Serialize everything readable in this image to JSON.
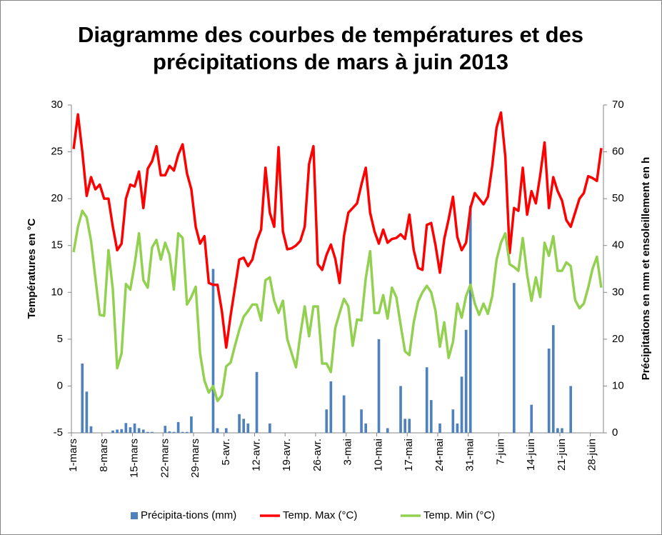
{
  "chart_data": {
    "type": "combo",
    "title": "Diagramme des courbes de températures et des précipitations de mars à juin 2013",
    "y_label": "Températures en °C",
    "y2_label": "Précipitations en mm et ensoleillement en h",
    "categories": [
      "1-mars",
      null,
      null,
      null,
      null,
      null,
      null,
      "8-mars",
      null,
      null,
      null,
      null,
      null,
      null,
      "15-mars",
      null,
      null,
      null,
      null,
      null,
      null,
      "22-mars",
      null,
      null,
      null,
      null,
      null,
      null,
      "29-mars",
      null,
      null,
      null,
      null,
      null,
      null,
      "5-avr.",
      null,
      null,
      null,
      null,
      null,
      null,
      "12-avr.",
      null,
      null,
      null,
      null,
      null,
      null,
      "19-avr.",
      null,
      null,
      null,
      null,
      null,
      null,
      "26-avr.",
      null,
      null,
      null,
      null,
      null,
      null,
      "3-mai",
      null,
      null,
      null,
      null,
      null,
      null,
      "10-mai",
      null,
      null,
      null,
      null,
      null,
      null,
      "17-mai",
      null,
      null,
      null,
      null,
      null,
      null,
      "24-mai",
      null,
      null,
      null,
      null,
      null,
      null,
      "31-mai",
      null,
      null,
      null,
      null,
      null,
      null,
      "7-juin",
      null,
      null,
      null,
      null,
      null,
      null,
      "14-juin",
      null,
      null,
      null,
      null,
      null,
      null,
      "21-juin",
      null,
      null,
      null,
      null,
      null,
      null,
      "28-juin",
      null,
      null
    ],
    "series": [
      {
        "name": "Précipita-tions (mm)",
        "type": "bar",
        "axis": "y2",
        "color": "#4f81bd",
        "values": [
          0,
          0,
          14.8,
          8.8,
          1.4,
          0,
          0,
          0,
          0,
          0.5,
          0.7,
          0.8,
          2.1,
          1.2,
          2,
          1,
          0.7,
          0.2,
          0.2,
          0,
          0,
          1.5,
          0.3,
          0.2,
          2.3,
          0.2,
          0.2,
          3.5,
          0,
          0,
          0,
          0,
          35,
          1,
          0,
          1,
          0,
          0,
          4,
          3,
          2,
          0,
          13,
          0,
          0,
          2,
          0,
          0,
          0,
          0,
          0,
          0,
          0,
          0,
          0,
          0,
          0,
          0,
          5,
          11,
          0,
          0,
          8,
          0,
          0,
          0,
          5,
          2,
          0,
          0,
          20,
          0,
          1,
          0,
          0,
          10,
          3,
          3,
          0,
          0,
          0,
          14,
          7,
          0,
          2,
          0,
          0,
          5,
          2,
          12,
          22,
          48.5,
          0,
          0,
          0,
          0,
          0,
          0,
          0,
          0,
          0,
          32,
          0,
          0,
          0,
          6,
          0,
          0,
          0,
          18,
          23,
          1,
          1,
          0,
          10,
          0,
          0,
          0,
          0,
          0,
          0,
          0
        ]
      },
      {
        "name": "Temp. Max (°C)",
        "type": "line",
        "color": "#ff0000",
        "values": [
          25.3,
          29,
          25,
          20.3,
          22.3,
          21,
          21.5,
          20,
          20,
          17,
          14.5,
          15.2,
          20,
          21.5,
          21.3,
          22.9,
          19,
          23.2,
          24,
          25.6,
          22.5,
          22.5,
          23.5,
          23,
          24.7,
          25.8,
          22.7,
          21,
          17,
          15.2,
          16,
          11,
          10.8,
          10.8,
          8,
          4.1,
          7.5,
          10.5,
          13.5,
          13.7,
          12.8,
          13.5,
          15.5,
          16.7,
          23.3,
          18.5,
          17,
          25.5,
          16.5,
          14.6,
          14.7,
          15,
          15.5,
          17,
          23.7,
          25.6,
          13,
          12.4,
          14,
          15.1,
          13.6,
          11,
          16,
          18.5,
          19,
          19.5,
          21.5,
          23.3,
          18.5,
          16.5,
          15.2,
          16.7,
          15.3,
          15.7,
          15.8,
          16.2,
          15.7,
          18.3,
          14.5,
          12.6,
          12.4,
          17.2,
          17.4,
          15,
          12.1,
          15.7,
          17.8,
          20.2,
          15.9,
          14.5,
          15.3,
          19,
          20.6,
          20,
          19.4,
          20.2,
          23.5,
          27.6,
          29.2,
          24.5,
          14.2,
          19,
          18.7,
          23.3,
          18.3,
          20.8,
          19.5,
          22.5,
          26,
          19,
          22.3,
          20.8,
          19.8,
          17.7,
          17,
          18.5,
          20,
          20.6,
          22.4,
          22.2,
          21.9,
          25.4
        ]
      },
      {
        "name": "Temp. Min (°C)",
        "type": "line",
        "color": "#92d050",
        "values": [
          14.3,
          17,
          18.7,
          18,
          15.5,
          11.5,
          7.6,
          7.5,
          14.5,
          10.3,
          1.9,
          3.5,
          10.9,
          10.3,
          13,
          16.3,
          11.3,
          10.5,
          14.8,
          15.6,
          13.5,
          15.3,
          14,
          10.3,
          16.3,
          15.8,
          8.7,
          9.5,
          10.6,
          3.5,
          0.6,
          -0.7,
          0,
          -1.6,
          -1,
          2.1,
          2.5,
          4.3,
          6,
          7.4,
          8,
          8.7,
          8.7,
          7,
          11.3,
          11.6,
          9.1,
          7.8,
          9.1,
          5,
          3.5,
          2,
          5.5,
          8.5,
          5.3,
          8.5,
          8.5,
          2.4,
          2.4,
          1.5,
          6.2,
          7.8,
          9.3,
          8.5,
          4.3,
          7.1,
          7,
          11.5,
          14.4,
          7.8,
          7.8,
          9.7,
          7.2,
          10.5,
          9.5,
          6.5,
          3.7,
          3.3,
          6.8,
          9,
          10,
          10.7,
          10,
          8,
          4.2,
          6.8,
          3,
          4.7,
          8.8,
          7.3,
          9.6,
          10.8,
          8.8,
          7.6,
          8.8,
          7.7,
          9.6,
          13.5,
          15.3,
          16.3,
          13,
          12.7,
          12.3,
          15.8,
          11.9,
          9.1,
          11.6,
          9.5,
          15.3,
          13.9,
          16,
          12.3,
          12.3,
          13.2,
          12.8,
          9.2,
          8.3,
          8.8,
          10.5,
          12.5,
          13.8,
          10.5
        ]
      }
    ],
    "ylim": [
      -5,
      30
    ],
    "yticks": [
      -5,
      0,
      5,
      10,
      15,
      20,
      25,
      30
    ],
    "y2lim": [
      0,
      70
    ],
    "y2ticks": [
      0,
      10,
      20,
      30,
      40,
      50,
      60,
      70
    ],
    "grid": false,
    "legend": "bottom"
  }
}
